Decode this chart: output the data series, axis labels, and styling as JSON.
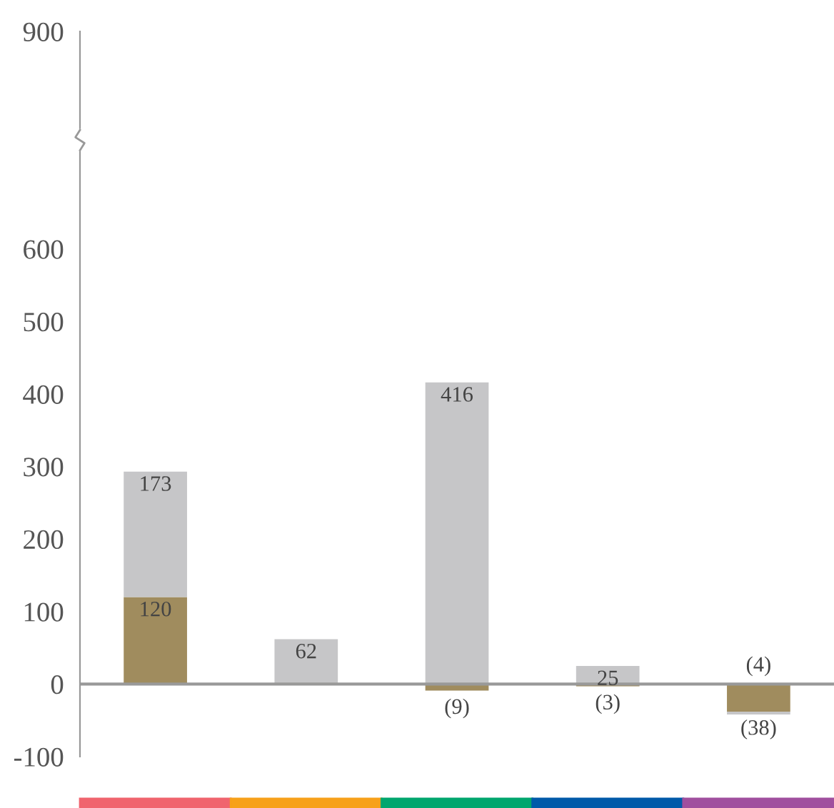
{
  "chart_data": {
    "type": "bar",
    "stacked": true,
    "categories": [
      null,
      null,
      null,
      null,
      null
    ],
    "series": [
      {
        "color": "#a08c5e",
        "values": [
          120,
          null,
          -9,
          -3,
          -38
        ],
        "value_labels": [
          "120",
          null,
          "(9)",
          "(3)",
          "(38)"
        ]
      },
      {
        "color": "#c6c6c8",
        "values": [
          173,
          62,
          416,
          25,
          -4
        ],
        "value_labels": [
          "173",
          "62",
          "416",
          "25",
          "(4)"
        ]
      }
    ],
    "ref_lines": [
      {
        "axis": "y",
        "value": 0,
        "color": "#999999"
      }
    ],
    "ylim": [
      -100,
      900
    ],
    "yticks": [
      -100,
      0,
      100,
      200,
      300,
      400,
      500,
      600,
      900
    ],
    "grid": false,
    "legend": false
  }
}
